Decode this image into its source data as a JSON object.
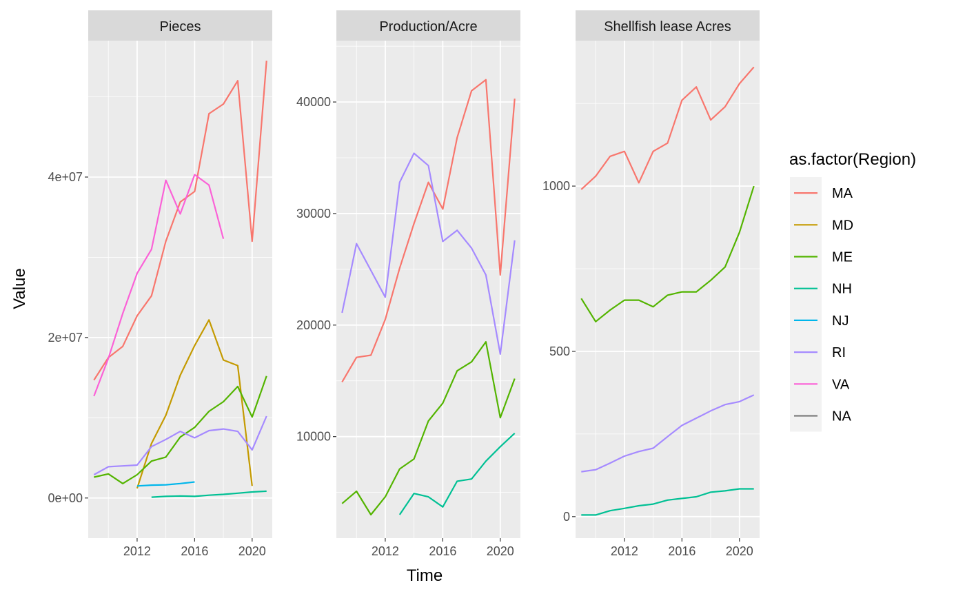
{
  "chart_data": {
    "type": "line",
    "xlabel": "Time",
    "ylabel": "Value",
    "grid": true,
    "legend": {
      "title": "as.factor(Region)",
      "placement": "right",
      "entries": [
        "MA",
        "MD",
        "ME",
        "NH",
        "NJ",
        "RI",
        "VA",
        "NA"
      ]
    },
    "colors": {
      "MA": "#F8766D",
      "MD": "#C49A00",
      "ME": "#53B400",
      "NH": "#00C094",
      "NJ": "#00B6EB",
      "RI": "#A58AFF",
      "VA": "#FB61D7",
      "NA": "#7F7F7F"
    },
    "xlim": [
      2008.6,
      2021.4
    ],
    "x_ticks": [
      2012,
      2016,
      2020
    ],
    "x_tick_labels": [
      "2012",
      "2016",
      "2020"
    ],
    "panels": [
      {
        "strip": "Pieces",
        "ylim": [
          -5000000,
          57000000
        ],
        "y_ticks": [
          0,
          20000000,
          40000000
        ],
        "y_tick_labels": [
          "0e+00",
          "2e+07",
          "4e+07"
        ],
        "series": [
          {
            "name": "MA",
            "points": [
              [
                2009,
                14700000
              ],
              [
                2010,
                17500000
              ],
              [
                2011,
                18900000
              ],
              [
                2012,
                22700000
              ],
              [
                2013,
                25200000
              ],
              [
                2014,
                32000000
              ],
              [
                2015,
                36900000
              ],
              [
                2016,
                38200000
              ],
              [
                2017,
                47900000
              ],
              [
                2018,
                49100000
              ],
              [
                2019,
                52000000
              ],
              [
                2020,
                32000000
              ],
              [
                2021,
                54500000
              ]
            ]
          },
          {
            "name": "MD",
            "points": [
              [
                2012,
                1200000
              ],
              [
                2013,
                6800000
              ],
              [
                2014,
                10300000
              ],
              [
                2015,
                15300000
              ],
              [
                2016,
                19000000
              ],
              [
                2017,
                22200000
              ],
              [
                2018,
                17200000
              ],
              [
                2019,
                16500000
              ],
              [
                2020,
                1500000
              ]
            ]
          },
          {
            "name": "ME",
            "points": [
              [
                2009,
                2600000
              ],
              [
                2010,
                3000000
              ],
              [
                2011,
                1800000
              ],
              [
                2012,
                2900000
              ],
              [
                2013,
                4600000
              ],
              [
                2014,
                5100000
              ],
              [
                2015,
                7600000
              ],
              [
                2016,
                8800000
              ],
              [
                2017,
                10800000
              ],
              [
                2018,
                12000000
              ],
              [
                2019,
                13900000
              ],
              [
                2020,
                10100000
              ],
              [
                2021,
                15200000
              ]
            ]
          },
          {
            "name": "NH",
            "points": [
              [
                2013,
                100000
              ],
              [
                2014,
                200000
              ],
              [
                2015,
                250000
              ],
              [
                2016,
                200000
              ],
              [
                2017,
                350000
              ],
              [
                2018,
                450000
              ],
              [
                2019,
                600000
              ],
              [
                2020,
                750000
              ],
              [
                2021,
                850000
              ]
            ]
          },
          {
            "name": "NJ",
            "points": [
              [
                2012,
                1500000
              ],
              [
                2013,
                1600000
              ],
              [
                2014,
                1650000
              ],
              [
                2015,
                1800000
              ],
              [
                2016,
                2000000
              ]
            ]
          },
          {
            "name": "RI",
            "points": [
              [
                2009,
                2900000
              ],
              [
                2010,
                3900000
              ],
              [
                2011,
                4000000
              ],
              [
                2012,
                4100000
              ],
              [
                2013,
                6400000
              ],
              [
                2014,
                7300000
              ],
              [
                2015,
                8300000
              ],
              [
                2016,
                7500000
              ],
              [
                2017,
                8400000
              ],
              [
                2018,
                8600000
              ],
              [
                2019,
                8300000
              ],
              [
                2020,
                6000000
              ],
              [
                2021,
                10200000
              ]
            ]
          },
          {
            "name": "VA",
            "points": [
              [
                2009,
                12700000
              ],
              [
                2010,
                17400000
              ],
              [
                2011,
                23000000
              ],
              [
                2012,
                28000000
              ],
              [
                2013,
                31000000
              ],
              [
                2014,
                39600000
              ],
              [
                2015,
                35400000
              ],
              [
                2016,
                40300000
              ],
              [
                2017,
                39000000
              ],
              [
                2018,
                32300000
              ]
            ]
          }
        ]
      },
      {
        "strip": "Production/Acre",
        "ylim": [
          900,
          45500
        ],
        "y_ticks": [
          10000,
          20000,
          30000,
          40000
        ],
        "y_tick_labels": [
          "10000",
          "20000",
          "30000",
          "40000"
        ],
        "series": [
          {
            "name": "MA",
            "points": [
              [
                2009,
                14900
              ],
              [
                2010,
                17100
              ],
              [
                2011,
                17300
              ],
              [
                2012,
                20500
              ],
              [
                2013,
                25100
              ],
              [
                2014,
                29100
              ],
              [
                2015,
                32800
              ],
              [
                2016,
                30400
              ],
              [
                2017,
                36800
              ],
              [
                2018,
                41000
              ],
              [
                2019,
                42000
              ],
              [
                2020,
                24500
              ],
              [
                2021,
                40300
              ]
            ]
          },
          {
            "name": "ME",
            "points": [
              [
                2009,
                4000
              ],
              [
                2010,
                5100
              ],
              [
                2011,
                3000
              ],
              [
                2012,
                4600
              ],
              [
                2013,
                7100
              ],
              [
                2014,
                8000
              ],
              [
                2015,
                11400
              ],
              [
                2016,
                13000
              ],
              [
                2017,
                15900
              ],
              [
                2018,
                16700
              ],
              [
                2019,
                18500
              ],
              [
                2020,
                11700
              ],
              [
                2021,
                15200
              ]
            ]
          },
          {
            "name": "NH",
            "points": [
              [
                2013,
                3000
              ],
              [
                2014,
                4900
              ],
              [
                2015,
                4600
              ],
              [
                2016,
                3700
              ],
              [
                2017,
                6000
              ],
              [
                2018,
                6200
              ],
              [
                2019,
                7800
              ],
              [
                2020,
                9100
              ],
              [
                2021,
                10300
              ]
            ]
          },
          {
            "name": "RI",
            "points": [
              [
                2009,
                21100
              ],
              [
                2010,
                27300
              ],
              [
                2011,
                24900
              ],
              [
                2012,
                22500
              ],
              [
                2013,
                32800
              ],
              [
                2014,
                35400
              ],
              [
                2015,
                34300
              ],
              [
                2016,
                27500
              ],
              [
                2017,
                28500
              ],
              [
                2018,
                26900
              ],
              [
                2019,
                24500
              ],
              [
                2020,
                17400
              ],
              [
                2021,
                27600
              ]
            ]
          }
        ]
      },
      {
        "strip": "Shellfish lease Acres",
        "ylim": [
          -65,
          1440
        ],
        "y_ticks": [
          0,
          500,
          1000
        ],
        "y_tick_labels": [
          "0",
          "500",
          "1000"
        ],
        "series": [
          {
            "name": "MA",
            "points": [
              [
                2009,
                990
              ],
              [
                2010,
                1030
              ],
              [
                2011,
                1090
              ],
              [
                2012,
                1105
              ],
              [
                2013,
                1010
              ],
              [
                2014,
                1105
              ],
              [
                2015,
                1130
              ],
              [
                2016,
                1260
              ],
              [
                2017,
                1300
              ],
              [
                2018,
                1200
              ],
              [
                2019,
                1240
              ],
              [
                2020,
                1310
              ],
              [
                2021,
                1360
              ]
            ]
          },
          {
            "name": "ME",
            "points": [
              [
                2009,
                660
              ],
              [
                2010,
                590
              ],
              [
                2011,
                625
              ],
              [
                2012,
                655
              ],
              [
                2013,
                655
              ],
              [
                2014,
                635
              ],
              [
                2015,
                670
              ],
              [
                2016,
                680
              ],
              [
                2017,
                680
              ],
              [
                2018,
                715
              ],
              [
                2019,
                755
              ],
              [
                2020,
                860
              ],
              [
                2021,
                1000
              ]
            ]
          },
          {
            "name": "NH",
            "points": [
              [
                2009,
                5
              ],
              [
                2010,
                5
              ],
              [
                2011,
                18
              ],
              [
                2012,
                25
              ],
              [
                2013,
                33
              ],
              [
                2014,
                38
              ],
              [
                2015,
                50
              ],
              [
                2016,
                55
              ],
              [
                2017,
                60
              ],
              [
                2018,
                74
              ],
              [
                2019,
                78
              ],
              [
                2020,
                84
              ],
              [
                2021,
                84
              ]
            ]
          },
          {
            "name": "RI",
            "points": [
              [
                2009,
                136
              ],
              [
                2010,
                142
              ],
              [
                2011,
                162
              ],
              [
                2012,
                183
              ],
              [
                2013,
                197
              ],
              [
                2014,
                207
              ],
              [
                2015,
                242
              ],
              [
                2016,
                276
              ],
              [
                2017,
                298
              ],
              [
                2018,
                320
              ],
              [
                2019,
                339
              ],
              [
                2020,
                348
              ],
              [
                2021,
                368
              ]
            ]
          }
        ]
      }
    ]
  }
}
